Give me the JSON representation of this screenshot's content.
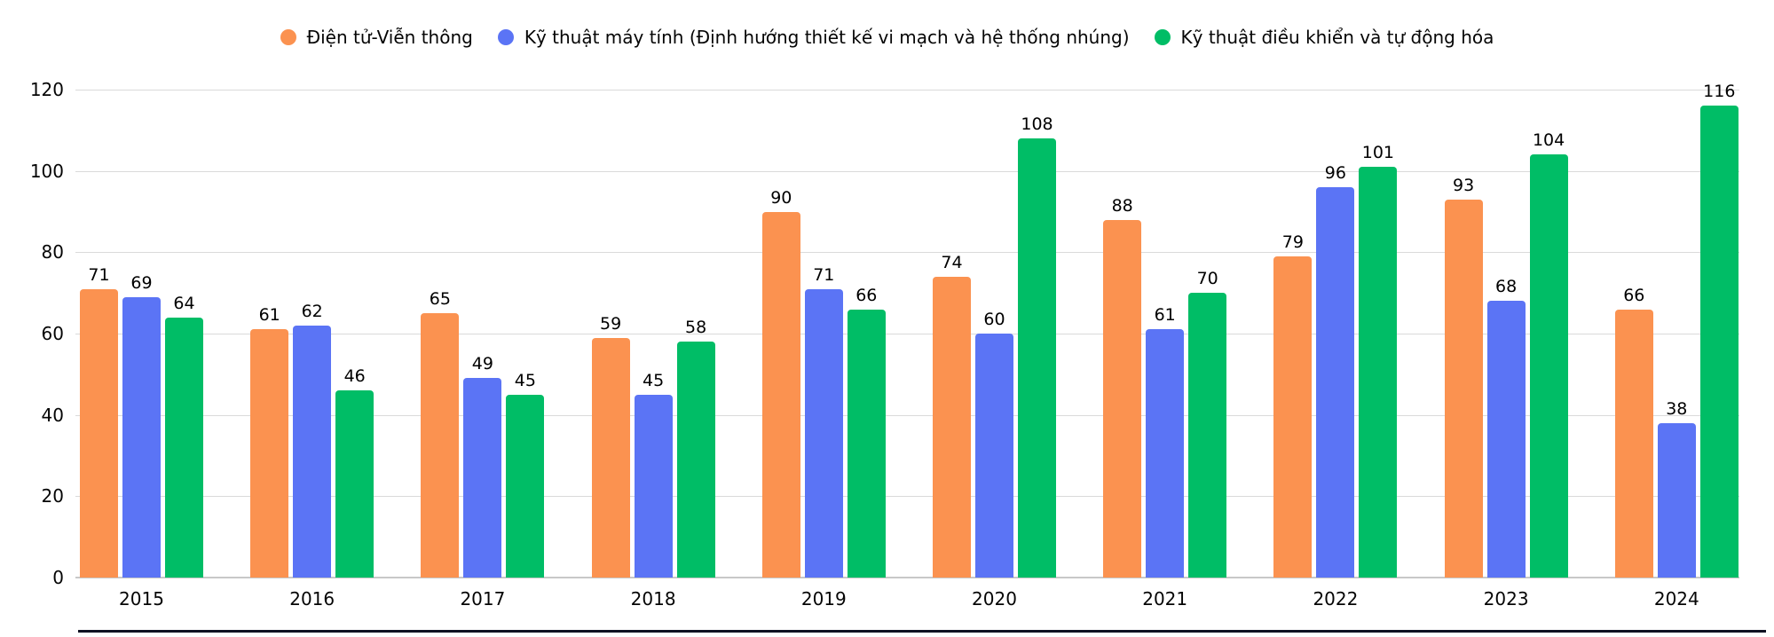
{
  "chart_data": {
    "type": "bar",
    "title": "",
    "categories": [
      "2015",
      "2016",
      "2017",
      "2018",
      "2019",
      "2020",
      "2021",
      "2022",
      "2023",
      "2024"
    ],
    "series": [
      {
        "name": "Điện tử-Viễn thông",
        "color": "#FB9250",
        "values": [
          71,
          61,
          65,
          59,
          90,
          74,
          88,
          79,
          93,
          66
        ]
      },
      {
        "name": "Kỹ thuật máy tính (Định hướng thiết kế vi mạch và hệ thống nhúng)",
        "color": "#5B74F5",
        "values": [
          69,
          62,
          49,
          45,
          71,
          60,
          61,
          96,
          68,
          38
        ]
      },
      {
        "name": "Kỹ thuật điều khiển và tự động hóa",
        "color": "#00BD66",
        "values": [
          64,
          46,
          45,
          58,
          66,
          108,
          70,
          101,
          104,
          116
        ]
      }
    ],
    "xlabel": "",
    "ylabel": "",
    "ylim": [
      0,
      120
    ],
    "yticks": [
      0,
      20,
      40,
      60,
      80,
      100,
      120
    ],
    "grid": true,
    "legend_position": "top",
    "value_labels": true
  },
  "style": {
    "background": "#ffffff",
    "grid_color": "#dadada",
    "baseline_color": "#c8c8c8",
    "text_color": "#050505",
    "bottom_line_color": "#101223"
  }
}
